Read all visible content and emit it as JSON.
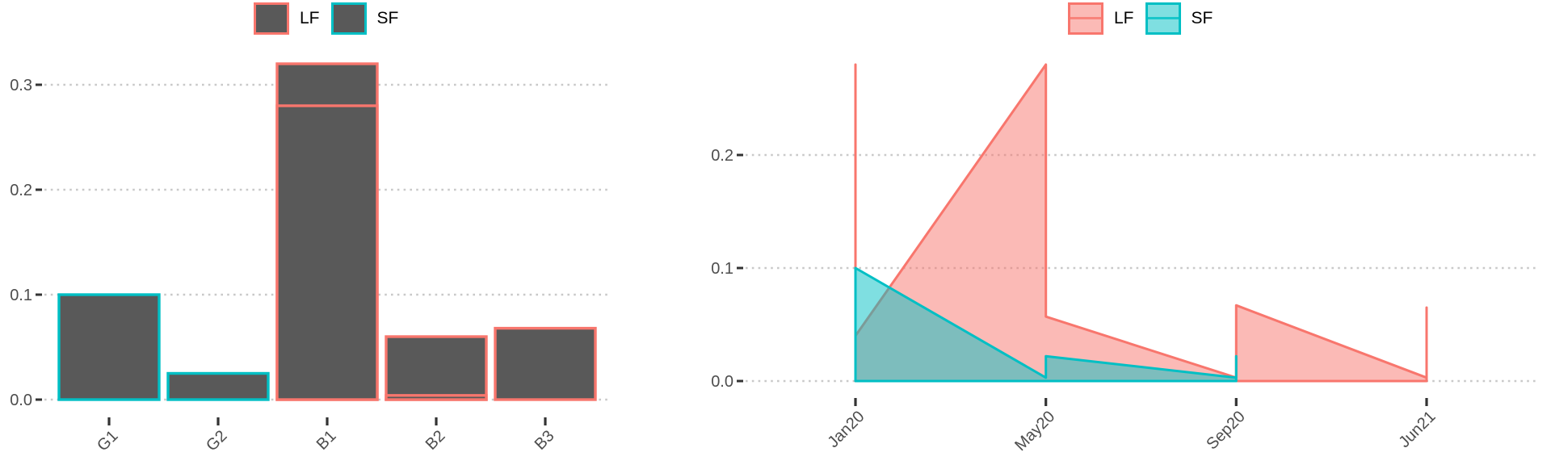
{
  "colors": {
    "lf": "#F8766D",
    "sf": "#00BFC4",
    "bar_fill": "#595959",
    "grid": "#C9C9C9",
    "tick": "#333333",
    "axis_text": "#4D4D4D",
    "legend_text": "#000000",
    "background": "#FFFFFF"
  },
  "legends": {
    "left": {
      "style": "bar-key",
      "items": [
        {
          "label": "LF",
          "color": "#F8766D"
        },
        {
          "label": "SF",
          "color": "#00BFC4"
        }
      ]
    },
    "right": {
      "style": "area-key",
      "items": [
        {
          "label": "LF",
          "color": "#F8766D"
        },
        {
          "label": "SF",
          "color": "#00BFC4"
        }
      ]
    }
  },
  "chart_data": [
    {
      "type": "bar",
      "title": "",
      "categories": [
        "G1",
        "G2",
        "B1",
        "B2",
        "B3"
      ],
      "bar_fill": "#595959",
      "legend": [
        "LF",
        "SF"
      ],
      "legend_position": "top",
      "grid": "dotted-horizontal",
      "ylim": [
        0,
        0.335
      ],
      "yticks": [
        {
          "value": 0.0,
          "label": "0.0"
        },
        {
          "value": 0.1,
          "label": "0.1"
        },
        {
          "value": 0.2,
          "label": "0.2"
        },
        {
          "value": 0.3,
          "label": "0.3"
        }
      ],
      "bars": [
        {
          "category": "G1",
          "group": "SF",
          "value": 0.1
        },
        {
          "category": "G2",
          "group": "SF",
          "value": 0.025
        },
        {
          "category": "B1",
          "group": "LF",
          "value": 0.32
        },
        {
          "category": "B1",
          "group": "LF",
          "value": 0.28
        },
        {
          "category": "B2",
          "group": "LF",
          "value": 0.06
        },
        {
          "category": "B2",
          "group": "LF",
          "value": 0.004
        },
        {
          "category": "B3",
          "group": "LF",
          "value": 0.068
        }
      ]
    },
    {
      "type": "area",
      "title": "",
      "x_labels": [
        "Jan20",
        "May20",
        "Sep20",
        "Jun21"
      ],
      "legend": [
        "LF",
        "SF"
      ],
      "legend_position": "top",
      "grid": "dotted-horizontal",
      "ylim": [
        0,
        0.294
      ],
      "fill_alpha": 0.5,
      "yticks": [
        {
          "value": 0.0,
          "label": "0.0"
        },
        {
          "value": 0.1,
          "label": "0.1"
        },
        {
          "value": 0.2,
          "label": "0.2"
        }
      ],
      "series": [
        {
          "name": "LF",
          "color": "#F8766D",
          "points": [
            [
              0,
              0.28
            ],
            [
              0,
              0.04
            ],
            [
              1,
              0.28
            ],
            [
              1,
              0.057
            ],
            [
              2,
              0.003
            ],
            [
              2,
              0.067
            ],
            [
              3,
              0.003
            ],
            [
              3,
              0.065
            ]
          ]
        },
        {
          "name": "SF",
          "color": "#00BFC4",
          "points": [
            [
              0,
              0.1
            ],
            [
              1,
              0.003
            ],
            [
              1,
              0.022
            ],
            [
              2,
              0.003
            ],
            [
              2,
              0.022
            ]
          ]
        }
      ]
    }
  ]
}
